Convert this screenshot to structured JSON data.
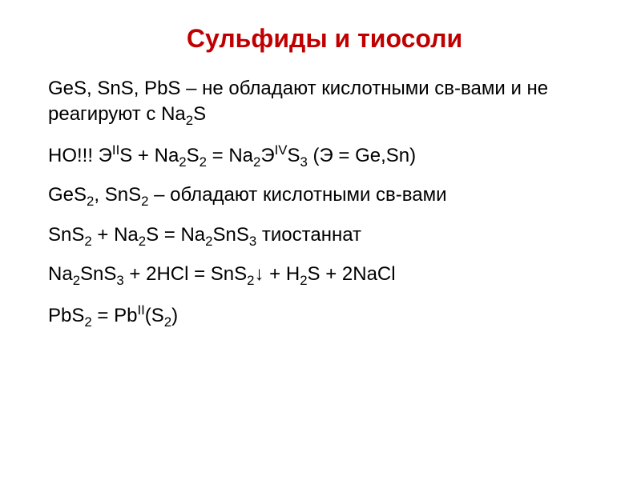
{
  "slide": {
    "title": "Сульфиды и тиосоли",
    "title_color": "#c00000",
    "title_fontsize": 32,
    "body_color": "#000000",
    "body_fontsize": 24,
    "background": "#ffffff",
    "lines": [
      {
        "html": "GeS, SnS, PbS – не обладают кислотными св-вами и не реагируют с Na<sub>2</sub>S"
      },
      {
        "html": "НО!!! Э<sup>II</sup>S + Na<sub>2</sub>S<sub>2</sub> = Na<sub>2</sub>Э<sup>IV</sup>S<sub>3</sub> (Э = Ge,Sn)"
      },
      {
        "html": "GeS<sub>2</sub>, SnS<sub>2</sub> – обладают кислотными св-вами"
      },
      {
        "html": "SnS<sub>2</sub> + Na<sub>2</sub>S = Na<sub>2</sub>SnS<sub>3</sub> тиостаннат"
      },
      {
        "html": "Na<sub>2</sub>SnS<sub>3</sub> + 2HCl = SnS<sub>2</sub>↓ + H<sub>2</sub>S + 2NaCl"
      },
      {
        "html": "PbS<sub>2</sub> =  Pb<sup>II</sup>(S<sub>2</sub>)"
      }
    ]
  }
}
